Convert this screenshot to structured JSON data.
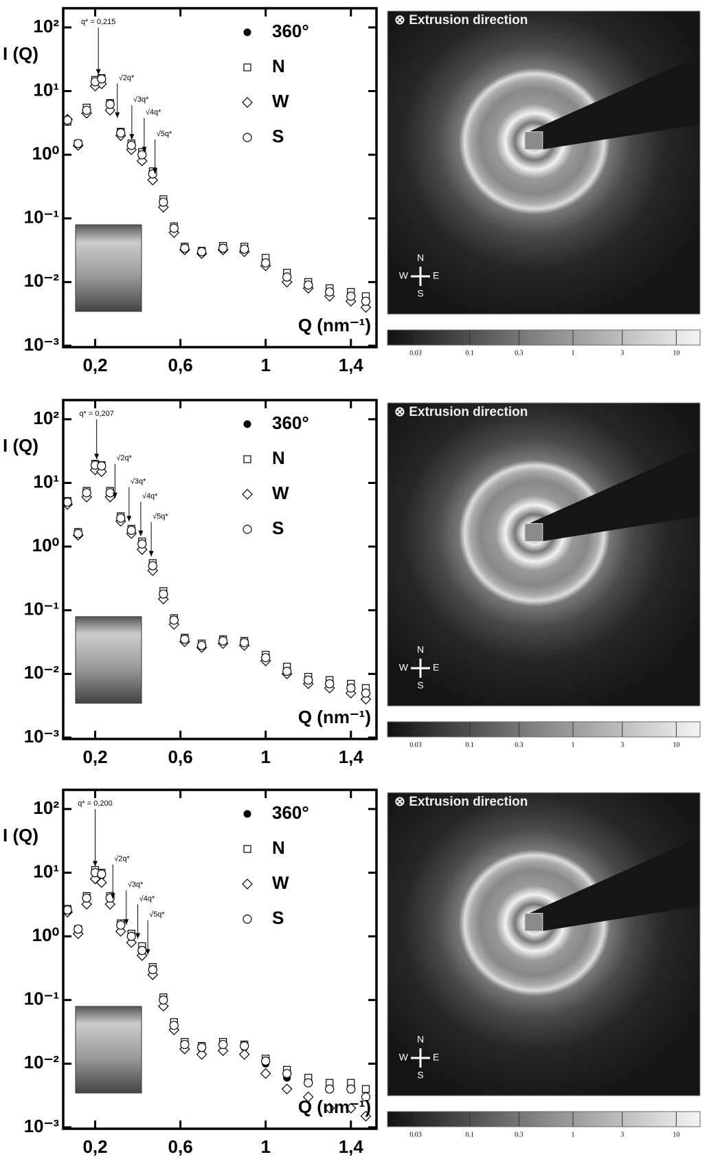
{
  "chart_data": [
    {
      "type": "scatter",
      "log_y": true,
      "y_label": "I (Q)",
      "x_label": "Q (nm⁻¹)",
      "legend": "upper right",
      "x": [
        0.07,
        0.12,
        0.16,
        0.2,
        0.23,
        0.27,
        0.32,
        0.37,
        0.42,
        0.47,
        0.52,
        0.57,
        0.62,
        0.7,
        0.8,
        0.9,
        1.0,
        1.1,
        1.2,
        1.3,
        1.4,
        1.47
      ],
      "series": [
        {
          "name": "360°",
          "marker": "filled-circle",
          "color": "#000",
          "values": [
            3.5,
            1.5,
            5,
            14,
            15,
            6,
            2.2,
            1.4,
            1.0,
            0.5,
            0.18,
            0.07,
            0.035,
            0.03,
            0.035,
            0.033,
            0.02,
            0.012,
            0.009,
            0.007,
            0.006,
            0.005
          ]
        },
        {
          "name": "N",
          "marker": "square",
          "color": "#000",
          "values": [
            3.3,
            1.5,
            5.5,
            15,
            16,
            6.5,
            2.3,
            1.5,
            1.1,
            0.55,
            0.2,
            0.075,
            0.036,
            0.031,
            0.037,
            0.036,
            0.024,
            0.014,
            0.01,
            0.008,
            0.007,
            0.006
          ]
        },
        {
          "name": "W",
          "marker": "diamond",
          "color": "#000",
          "values": [
            3.6,
            1.4,
            4.5,
            12,
            13,
            5,
            2.0,
            1.2,
            0.8,
            0.4,
            0.15,
            0.06,
            0.032,
            0.028,
            0.032,
            0.03,
            0.018,
            0.01,
            0.008,
            0.006,
            0.005,
            0.004
          ]
        },
        {
          "name": "S",
          "marker": "circle",
          "color": "#000",
          "values": [
            3.5,
            1.5,
            5,
            14,
            15.5,
            6.2,
            2.2,
            1.4,
            1.0,
            0.5,
            0.18,
            0.07,
            0.034,
            0.03,
            0.034,
            0.033,
            0.02,
            0.012,
            0.009,
            0.007,
            0.006,
            0.005
          ]
        }
      ],
      "annotations": [
        {
          "text": "q* = 0,215",
          "x": 0.215
        },
        {
          "text": "√2q*",
          "x": 0.304
        },
        {
          "text": "√3q*",
          "x": 0.372
        },
        {
          "text": "√4q*",
          "x": 0.43
        },
        {
          "text": "√5q*",
          "x": 0.481
        }
      ],
      "xlim": [
        0.05,
        1.52
      ],
      "xticks": [
        {
          "value": 0.2,
          "label": "0,2"
        },
        {
          "value": 0.6,
          "label": "0,6"
        },
        1,
        {
          "value": 1.4,
          "label": "1,4"
        }
      ],
      "ylim": [
        0.00095,
        200
      ],
      "yticks": [
        {
          "value": 0.001,
          "label": "10⁻³"
        },
        {
          "value": 0.01,
          "label": "10⁻²"
        },
        {
          "value": 0.1,
          "label": "10⁻¹"
        },
        {
          "value": 1,
          "label": "10⁰"
        },
        {
          "value": 10,
          "label": "10¹"
        },
        {
          "value": 100,
          "label": "10²"
        }
      ]
    },
    {
      "type": "scatter",
      "log_y": true,
      "y_label": "I (Q)",
      "x_label": "Q (nm⁻¹)",
      "legend": "upper right",
      "x": [
        0.07,
        0.12,
        0.16,
        0.2,
        0.23,
        0.27,
        0.32,
        0.37,
        0.42,
        0.47,
        0.52,
        0.57,
        0.62,
        0.7,
        0.8,
        0.9,
        1.0,
        1.1,
        1.2,
        1.3,
        1.4,
        1.47
      ],
      "series": [
        {
          "name": "360°",
          "marker": "filled-circle",
          "color": "#000",
          "values": [
            5,
            1.6,
            7,
            19,
            18,
            7,
            2.8,
            1.8,
            1.1,
            0.5,
            0.18,
            0.07,
            0.035,
            0.028,
            0.033,
            0.03,
            0.018,
            0.011,
            0.008,
            0.007,
            0.006,
            0.005
          ]
        },
        {
          "name": "N",
          "marker": "square",
          "color": "#000",
          "values": [
            5.2,
            1.7,
            7.5,
            20,
            19,
            7.5,
            3,
            1.9,
            1.2,
            0.55,
            0.2,
            0.075,
            0.037,
            0.03,
            0.035,
            0.033,
            0.02,
            0.013,
            0.009,
            0.008,
            0.007,
            0.006
          ]
        },
        {
          "name": "W",
          "marker": "diamond",
          "color": "#000",
          "values": [
            4.6,
            1.5,
            6,
            16,
            15,
            6,
            2.5,
            1.6,
            0.9,
            0.42,
            0.15,
            0.06,
            0.032,
            0.026,
            0.03,
            0.028,
            0.016,
            0.01,
            0.007,
            0.006,
            0.005,
            0.004
          ]
        },
        {
          "name": "S",
          "marker": "circle",
          "color": "#000",
          "values": [
            5,
            1.6,
            7,
            19,
            18.5,
            7,
            2.8,
            1.8,
            1.1,
            0.5,
            0.18,
            0.07,
            0.035,
            0.028,
            0.033,
            0.031,
            0.018,
            0.011,
            0.008,
            0.007,
            0.006,
            0.005
          ]
        }
      ],
      "annotations": [
        {
          "text": "q* = 0,207",
          "x": 0.207
        },
        {
          "text": "√2q*",
          "x": 0.293
        },
        {
          "text": "√3q*",
          "x": 0.359
        },
        {
          "text": "√4q*",
          "x": 0.414
        },
        {
          "text": "√5q*",
          "x": 0.463
        }
      ],
      "xlim": [
        0.05,
        1.52
      ],
      "xticks": [
        {
          "value": 0.2,
          "label": "0,2"
        },
        {
          "value": 0.6,
          "label": "0,6"
        },
        1,
        {
          "value": 1.4,
          "label": "1,4"
        }
      ],
      "ylim": [
        0.00095,
        200
      ],
      "yticks": [
        {
          "value": 0.001,
          "label": "10⁻³"
        },
        {
          "value": 0.01,
          "label": "10⁻²"
        },
        {
          "value": 0.1,
          "label": "10⁻¹"
        },
        {
          "value": 1,
          "label": "10⁰"
        },
        {
          "value": 10,
          "label": "10¹"
        },
        {
          "value": 100,
          "label": "10²"
        }
      ]
    },
    {
      "type": "scatter",
      "log_y": true,
      "y_label": "I (Q)",
      "x_label": "Q (nm⁻¹)",
      "legend": "upper right",
      "x": [
        0.07,
        0.12,
        0.16,
        0.2,
        0.23,
        0.27,
        0.32,
        0.37,
        0.42,
        0.47,
        0.52,
        0.57,
        0.62,
        0.7,
        0.8,
        0.9,
        1.0,
        1.1,
        1.2,
        1.3,
        1.4,
        1.47
      ],
      "series": [
        {
          "name": "360°",
          "marker": "filled-circle",
          "color": "#000",
          "values": [
            2.6,
            1.3,
            4,
            10,
            9,
            4,
            1.5,
            1.0,
            0.6,
            0.3,
            0.1,
            0.04,
            0.02,
            0.017,
            0.02,
            0.018,
            0.01,
            0.006,
            0.005,
            0.004,
            0.004,
            0.003
          ]
        },
        {
          "name": "N",
          "marker": "square",
          "color": "#000",
          "values": [
            2.7,
            1.3,
            4.3,
            11,
            10,
            4.3,
            1.6,
            1.1,
            0.7,
            0.33,
            0.11,
            0.045,
            0.022,
            0.019,
            0.022,
            0.02,
            0.012,
            0.008,
            0.006,
            0.005,
            0.005,
            0.004
          ]
        },
        {
          "name": "W",
          "marker": "diamond",
          "color": "#000",
          "values": [
            2.4,
            1.1,
            3.2,
            8,
            7,
            3.2,
            1.2,
            0.8,
            0.5,
            0.25,
            0.08,
            0.034,
            0.017,
            0.014,
            0.016,
            0.014,
            0.007,
            0.004,
            0.003,
            0.002,
            0.002,
            0.0015
          ]
        },
        {
          "name": "S",
          "marker": "circle",
          "color": "#000",
          "values": [
            2.6,
            1.3,
            4,
            10,
            9.5,
            4,
            1.5,
            1.0,
            0.6,
            0.3,
            0.1,
            0.04,
            0.02,
            0.018,
            0.02,
            0.019,
            0.011,
            0.007,
            0.005,
            0.004,
            0.004,
            0.003
          ]
        }
      ],
      "annotations": [
        {
          "text": "q* = 0,200",
          "x": 0.2
        },
        {
          "text": "√2q*",
          "x": 0.283
        },
        {
          "text": "√3q*",
          "x": 0.346
        },
        {
          "text": "√4q*",
          "x": 0.4
        },
        {
          "text": "√5q*",
          "x": 0.447
        }
      ],
      "xlim": [
        0.05,
        1.52
      ],
      "xticks": [
        {
          "value": 0.2,
          "label": "0,2"
        },
        {
          "value": 0.6,
          "label": "0,6"
        },
        1,
        {
          "value": 1.4,
          "label": "1,4"
        }
      ],
      "ylim": [
        0.00095,
        200
      ],
      "yticks": [
        {
          "value": 0.001,
          "label": "10⁻³"
        },
        {
          "value": 0.01,
          "label": "10⁻²"
        },
        {
          "value": 0.1,
          "label": "10⁻¹"
        },
        {
          "value": 1,
          "label": "10⁰"
        },
        {
          "value": 10,
          "label": "10¹"
        },
        {
          "value": 100,
          "label": "10²"
        }
      ]
    }
  ],
  "images": [
    {
      "title": "⊗ Extrusion direction",
      "compass": [
        "N",
        "W",
        "E",
        "S"
      ],
      "colorbar_lim": [
        0.016,
        17
      ],
      "colorbar_ticks": [
        0.03,
        0.1,
        0.3,
        1,
        3,
        10
      ]
    },
    {
      "title": "⊗ Extrusion direction",
      "compass": [
        "N",
        "W",
        "E",
        "S"
      ],
      "colorbar_lim": [
        0.016,
        17
      ],
      "colorbar_ticks": [
        0.03,
        0.1,
        0.3,
        1,
        3,
        10
      ]
    },
    {
      "title": "⊗ Extrusion direction",
      "compass": [
        "N",
        "W",
        "E",
        "S"
      ],
      "colorbar_lim": [
        0.016,
        17
      ],
      "colorbar_ticks": [
        0.03,
        0.1,
        0.3,
        1,
        3,
        10
      ]
    }
  ]
}
